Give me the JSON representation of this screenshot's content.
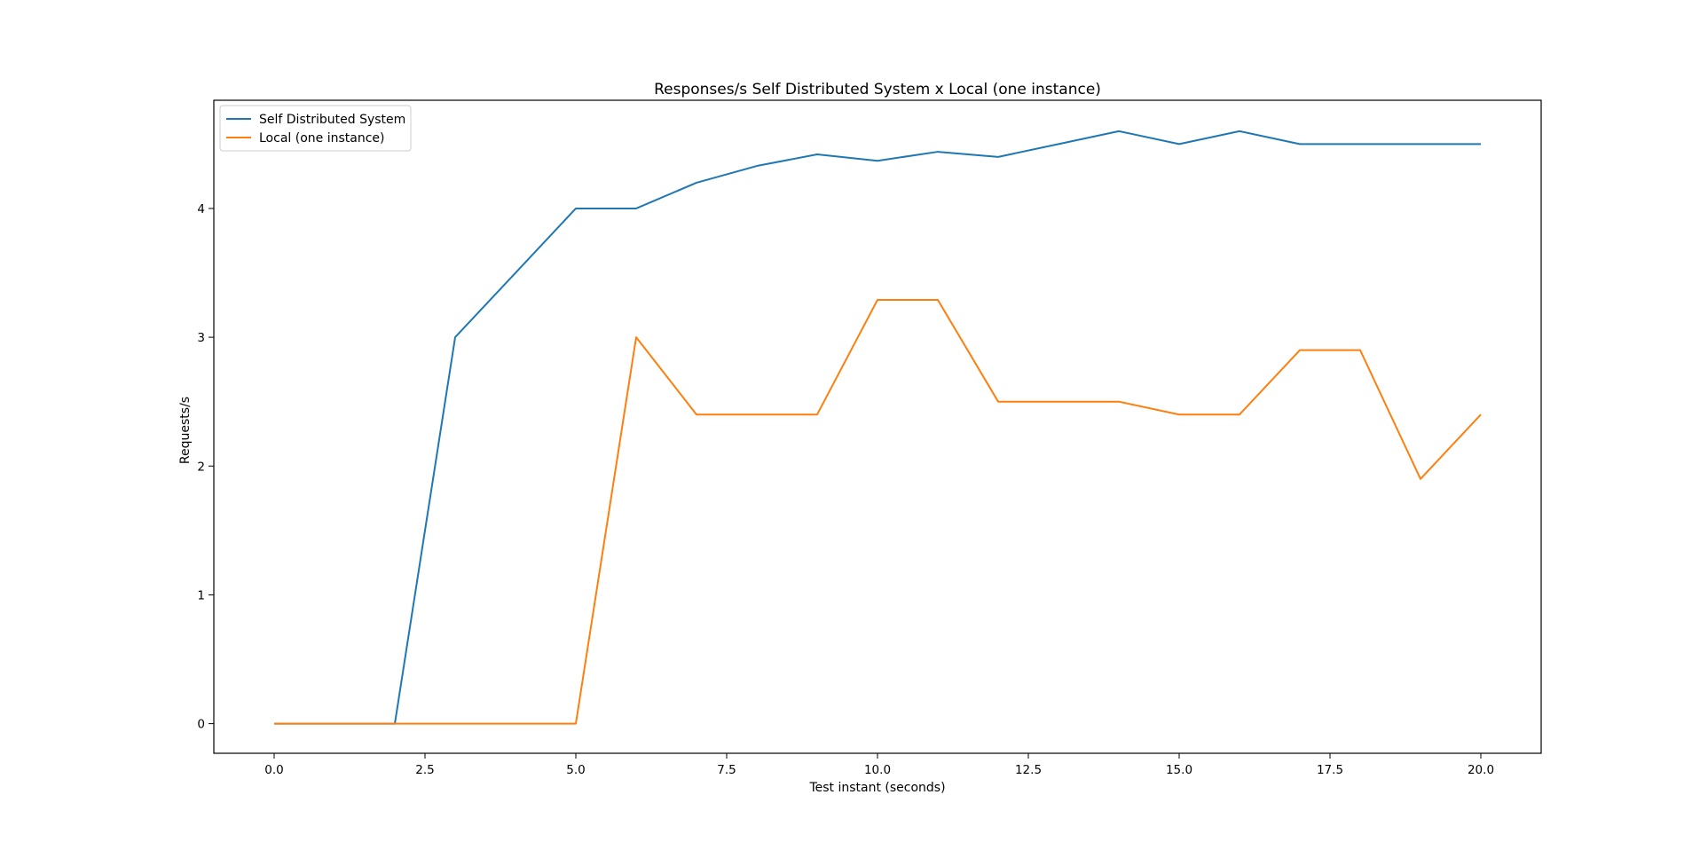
{
  "chart_data": {
    "type": "line",
    "title": "Responses/s Self Distributed System x Local (one instance)",
    "xlabel": "Test instant (seconds)",
    "ylabel": "Requests/s",
    "xlim": [
      -1,
      21
    ],
    "ylim": [
      -0.23,
      4.84
    ],
    "x_ticks": [
      0.0,
      2.5,
      5.0,
      7.5,
      10.0,
      12.5,
      15.0,
      17.5,
      20.0
    ],
    "x_tick_labels": [
      "0.0",
      "2.5",
      "5.0",
      "7.5",
      "10.0",
      "12.5",
      "15.0",
      "17.5",
      "20.0"
    ],
    "y_ticks": [
      0,
      1,
      2,
      3,
      4
    ],
    "y_tick_labels": [
      "0",
      "1",
      "2",
      "3",
      "4"
    ],
    "grid": false,
    "legend_position": "upper-left",
    "x": [
      0,
      1,
      2,
      3,
      4,
      5,
      6,
      7,
      8,
      9,
      10,
      11,
      12,
      13,
      14,
      15,
      16,
      17,
      18,
      19,
      20
    ],
    "series": [
      {
        "name": "Self Distributed System",
        "color": "#1f77b4",
        "values": [
          0,
          0,
          0,
          3.0,
          3.5,
          4.0,
          4.0,
          4.2,
          4.33,
          4.42,
          4.37,
          4.44,
          4.4,
          4.5,
          4.6,
          4.5,
          4.6,
          4.5,
          4.5,
          4.5,
          4.5
        ]
      },
      {
        "name": "Local (one instance)",
        "color": "#ff7f0e",
        "values": [
          0,
          0,
          0,
          0,
          0,
          0,
          3.0,
          2.4,
          2.4,
          2.4,
          3.29,
          3.29,
          2.5,
          2.5,
          2.5,
          2.4,
          2.4,
          2.9,
          2.9,
          1.9,
          2.4
        ]
      }
    ]
  }
}
